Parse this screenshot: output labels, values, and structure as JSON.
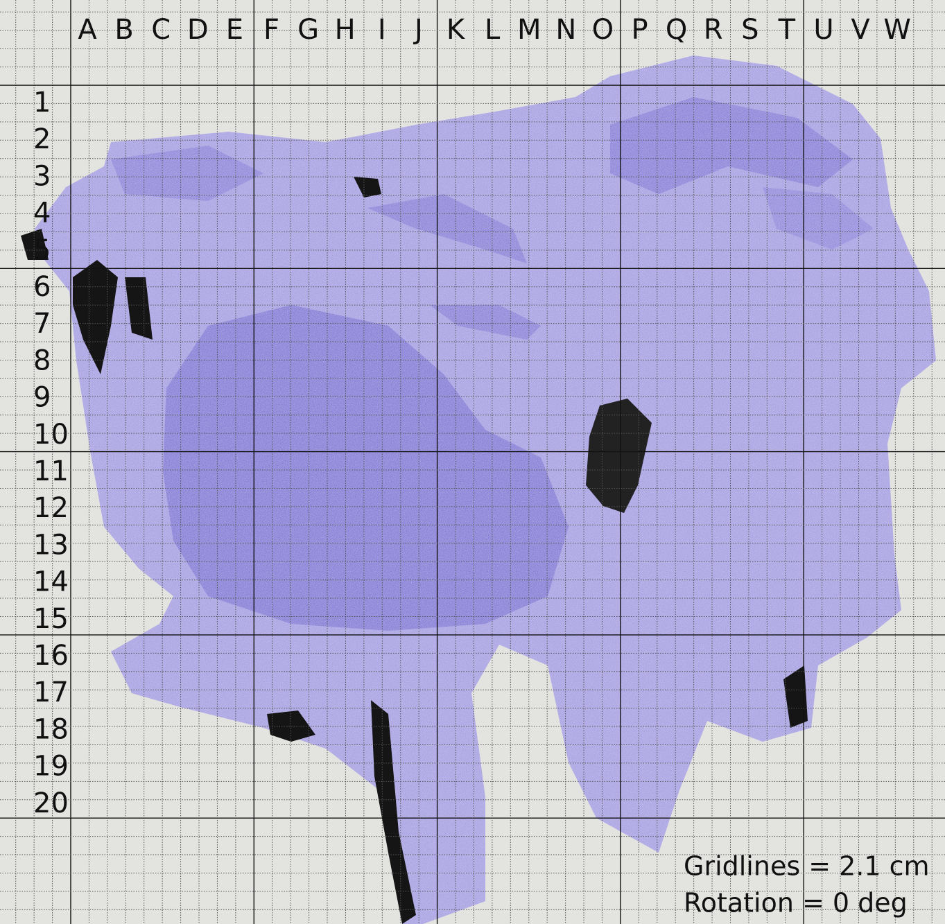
{
  "columns": [
    "A",
    "B",
    "C",
    "D",
    "E",
    "F",
    "G",
    "H",
    "I",
    "J",
    "K",
    "L",
    "M",
    "N",
    "O",
    "P",
    "Q",
    "R",
    "S",
    "T",
    "U",
    "V",
    "W"
  ],
  "rows": [
    "1",
    "2",
    "3",
    "4",
    "5",
    "6",
    "7",
    "8",
    "9",
    "10",
    "11",
    "12",
    "13",
    "14",
    "15",
    "16",
    "17",
    "18",
    "19",
    "20"
  ],
  "caption": {
    "gridlines": "Gridlines = 2.1 cm",
    "rotation": "Rotation = 0 deg"
  }
}
